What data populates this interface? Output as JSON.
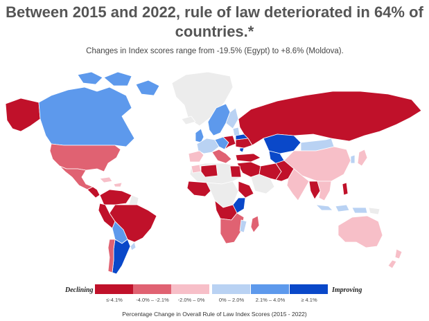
{
  "title": "Between 2015 and 2022, rule of law deteriorated in 64% of countries.*",
  "subtitle": "Changes in Index scores range from -19.5% (Egypt) to +8.6% (Moldova).",
  "colors": {
    "ocean": "#ffffff",
    "no_data": "#ececec",
    "border": "#ffffff"
  },
  "legend": {
    "left_label": "Declining",
    "right_label": "Improving",
    "bins": [
      {
        "label": "≤-4.1%",
        "color": "#c0112a"
      },
      {
        "label": "-4.0% – -2.1%",
        "color": "#e06272"
      },
      {
        "label": "-2.0% – 0%",
        "color": "#f7bfc8"
      },
      {
        "label": "0% – 2.0%",
        "color": "#b9d2f3"
      },
      {
        "label": "2.1% – 4.0%",
        "color": "#5d99ec"
      },
      {
        "label": "≥ 4.1%",
        "color": "#0a48c9"
      }
    ]
  },
  "caption": "Percentage Change in Overall Rule of Law Index Scores (2015 - 2022)"
}
